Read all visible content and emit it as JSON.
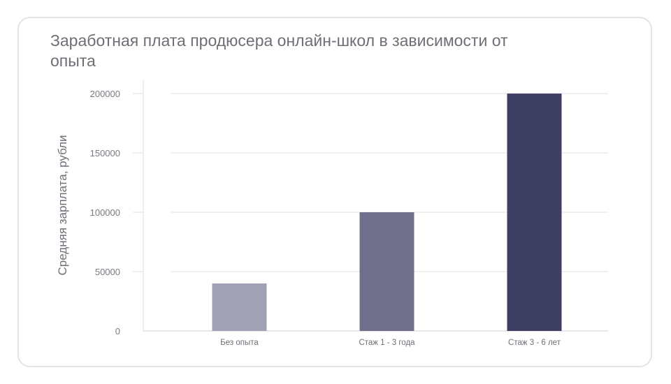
{
  "chart_data": {
    "type": "bar",
    "title": "Заработная плата продюсера онлайн-школ в зависимости от опыта",
    "xlabel": "",
    "ylabel": "Средняя зарплата, рубли",
    "categories": [
      "Без опыта",
      "Стаж 1 - 3 года",
      "Стаж 3 - 6 лет"
    ],
    "values": [
      40000,
      100000,
      200000
    ],
    "ylim": [
      0,
      200000
    ],
    "yticks": [
      "0",
      "50000",
      "100000",
      "150000",
      "200000"
    ],
    "bar_colors": [
      "#a1a1b5",
      "#6f6f8c",
      "#3f3e63"
    ],
    "grid": true,
    "legend": "none"
  }
}
